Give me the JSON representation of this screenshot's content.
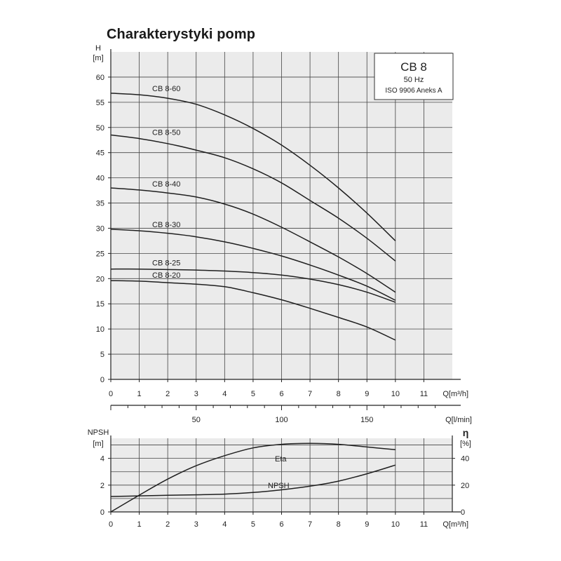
{
  "title": "Charakterystyki pomp",
  "info_box": {
    "model": "CB 8",
    "frequency": "50 Hz",
    "standard": "ISO 9906 Aneks A"
  },
  "chart_data": [
    {
      "type": "line",
      "ylabel_top": "H",
      "ylabel_unit": "[m]",
      "xlabel": "Q[m³/h]",
      "xlim": [
        0,
        12
      ],
      "ylim": [
        0,
        65
      ],
      "x_ticks": [
        0,
        1,
        2,
        3,
        4,
        5,
        6,
        7,
        8,
        9,
        10,
        11
      ],
      "y_ticks": [
        0,
        5,
        10,
        15,
        20,
        25,
        30,
        35,
        40,
        45,
        50,
        55,
        60
      ],
      "grid": true,
      "secondary_x_axis": {
        "label": "Q[l/min]",
        "ticks": [
          50,
          100,
          150
        ],
        "scale_per_m3h": 16.667
      },
      "series": [
        {
          "name": "CB 8-60",
          "x": [
            0,
            1,
            2,
            3,
            4,
            5,
            6,
            7,
            8,
            9,
            10
          ],
          "y": [
            56.8,
            56.5,
            55.8,
            54.6,
            52.5,
            49.8,
            46.5,
            42.5,
            38.0,
            33.0,
            27.5
          ]
        },
        {
          "name": "CB 8-50",
          "x": [
            0,
            1,
            2,
            3,
            4,
            5,
            6,
            7,
            8,
            9,
            10
          ],
          "y": [
            48.5,
            47.8,
            46.8,
            45.5,
            44.0,
            41.8,
            39.0,
            35.5,
            32.0,
            28.0,
            23.5
          ]
        },
        {
          "name": "CB 8-40",
          "x": [
            0,
            1,
            2,
            3,
            4,
            5,
            6,
            7,
            8,
            9,
            10
          ],
          "y": [
            38.0,
            37.6,
            37.0,
            36.2,
            34.8,
            32.8,
            30.2,
            27.3,
            24.3,
            21.0,
            17.3
          ]
        },
        {
          "name": "CB 8-30",
          "x": [
            0,
            1,
            2,
            3,
            4,
            5,
            6,
            7,
            8,
            9,
            10
          ],
          "y": [
            29.8,
            29.5,
            29.0,
            28.3,
            27.3,
            26.0,
            24.5,
            22.7,
            20.7,
            18.5,
            15.7
          ]
        },
        {
          "name": "CB 8-25",
          "x": [
            0,
            1,
            2,
            3,
            4,
            5,
            6,
            7,
            8,
            9,
            10
          ],
          "y": [
            21.9,
            21.9,
            21.8,
            21.7,
            21.5,
            21.2,
            20.7,
            19.9,
            18.8,
            17.3,
            15.3
          ]
        },
        {
          "name": "CB 8-20",
          "x": [
            0,
            1,
            2,
            3,
            4,
            5,
            6,
            7,
            8,
            9,
            10
          ],
          "y": [
            19.6,
            19.5,
            19.2,
            18.9,
            18.4,
            17.2,
            15.8,
            14.1,
            12.3,
            10.4,
            7.8
          ]
        }
      ]
    },
    {
      "type": "line",
      "ylabel_left": "NPSH",
      "ylabel_left_unit": "[m]",
      "ylabel_right": "η",
      "ylabel_right_unit": "[%]",
      "xlabel": "Q[m³/h]",
      "xlim": [
        0,
        12
      ],
      "ylim_left": [
        0,
        5.5
      ],
      "ylim_right": [
        0,
        55
      ],
      "y_ticks_left": [
        0,
        2,
        4
      ],
      "y_ticks_right": [
        0,
        20,
        40
      ],
      "x_ticks": [
        0,
        1,
        2,
        3,
        4,
        5,
        6,
        7,
        8,
        9,
        10,
        11
      ],
      "grid": true,
      "series": [
        {
          "name": "Eta",
          "axis": "right",
          "x": [
            0,
            1,
            2,
            3,
            4,
            5,
            6,
            7,
            8,
            9,
            10
          ],
          "y": [
            0,
            12.5,
            24.5,
            34.5,
            42.0,
            47.8,
            50.5,
            51.2,
            50.5,
            48.5,
            46.5
          ]
        },
        {
          "name": "NPSH",
          "axis": "left",
          "x": [
            0,
            1,
            2,
            3,
            4,
            5,
            6,
            7,
            8,
            9,
            10
          ],
          "y": [
            1.15,
            1.2,
            1.24,
            1.28,
            1.33,
            1.45,
            1.65,
            1.92,
            2.3,
            2.85,
            3.5
          ]
        }
      ]
    }
  ]
}
